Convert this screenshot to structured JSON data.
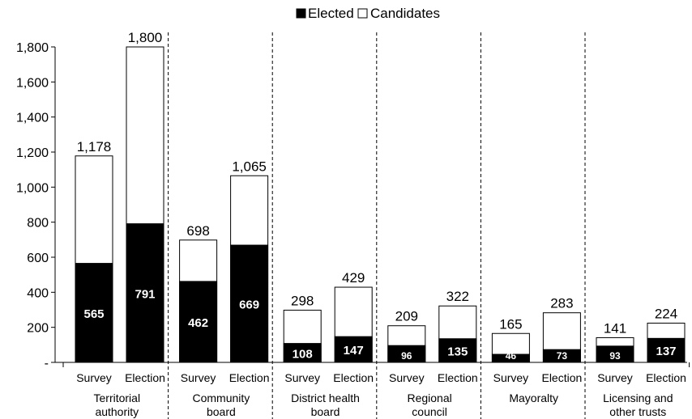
{
  "chart_data": {
    "type": "bar",
    "stacked": true,
    "legend": {
      "position": "top-center",
      "items": [
        {
          "label": "Elected",
          "swatch": "#000000"
        },
        {
          "label": "Candidates",
          "swatch": "#ffffff"
        }
      ]
    },
    "ylim": [
      0,
      1800
    ],
    "yticks": [
      {
        "value": 0,
        "label": "-"
      },
      {
        "value": 200,
        "label": "200"
      },
      {
        "value": 400,
        "label": "400"
      },
      {
        "value": 600,
        "label": "600"
      },
      {
        "value": 800,
        "label": "800"
      },
      {
        "value": 1000,
        "label": "1,000"
      },
      {
        "value": 1200,
        "label": "1,200"
      },
      {
        "value": 1400,
        "label": "1,400"
      },
      {
        "value": 1600,
        "label": "1,600"
      },
      {
        "value": 1800,
        "label": "1,800"
      }
    ],
    "grid": false,
    "groups": [
      {
        "label_lines": [
          "Territorial",
          "authority"
        ],
        "bars": [
          {
            "label": "Survey",
            "elected": 565,
            "total": 1178,
            "elected_label": "565",
            "total_label": "1,178"
          },
          {
            "label": "Election",
            "elected": 791,
            "total": 1800,
            "elected_label": "791",
            "total_label": "1,800"
          }
        ]
      },
      {
        "label_lines": [
          "Community",
          "board"
        ],
        "bars": [
          {
            "label": "Survey",
            "elected": 462,
            "total": 698,
            "elected_label": "462",
            "total_label": "698"
          },
          {
            "label": "Election",
            "elected": 669,
            "total": 1065,
            "elected_label": "669",
            "total_label": "1,065"
          }
        ]
      },
      {
        "label_lines": [
          "District health",
          "board"
        ],
        "bars": [
          {
            "label": "Survey",
            "elected": 108,
            "total": 298,
            "elected_label": "108",
            "total_label": "298"
          },
          {
            "label": "Election",
            "elected": 147,
            "total": 429,
            "elected_label": "147",
            "total_label": "429"
          }
        ]
      },
      {
        "label_lines": [
          "Regional",
          "council"
        ],
        "bars": [
          {
            "label": "Survey",
            "elected": 96,
            "total": 209,
            "elected_label": "96",
            "total_label": "209"
          },
          {
            "label": "Election",
            "elected": 135,
            "total": 322,
            "elected_label": "135",
            "total_label": "322"
          }
        ]
      },
      {
        "label_lines": [
          "Mayoralty"
        ],
        "bars": [
          {
            "label": "Survey",
            "elected": 46,
            "total": 165,
            "elected_label": "46",
            "total_label": "165"
          },
          {
            "label": "Election",
            "elected": 73,
            "total": 283,
            "elected_label": "73",
            "total_label": "283"
          }
        ]
      },
      {
        "label_lines": [
          "Licensing and",
          "other trusts"
        ],
        "bars": [
          {
            "label": "Survey",
            "elected": 93,
            "total": 141,
            "elected_label": "93",
            "total_label": "141"
          },
          {
            "label": "Election",
            "elected": 137,
            "total": 224,
            "elected_label": "137",
            "total_label": "224"
          }
        ]
      }
    ]
  }
}
